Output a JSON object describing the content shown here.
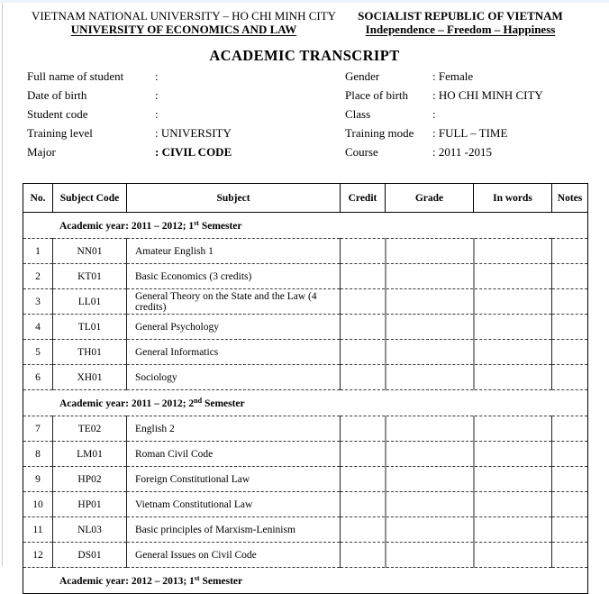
{
  "header": {
    "university_line1": "VIETNAM NATIONAL UNIVERSITY – HO CHI MINH CITY",
    "university_line2": "UNIVERSITY OF ECONOMICS AND LAW",
    "republic_line1": "SOCIALIST REPUBLIC OF VIETNAM",
    "republic_line2": "Independence – Freedom – Happiness"
  },
  "title": "ACADEMIC TRANSCRIPT",
  "student_info": {
    "left": [
      {
        "label": "Full name of student",
        "value": ":"
      },
      {
        "label": "Date of birth",
        "value": ":"
      },
      {
        "label": "Student code",
        "value": ":"
      },
      {
        "label": "Training level",
        "value": ": UNIVERSITY"
      },
      {
        "label": "Major",
        "value": ": CIVIL CODE"
      }
    ],
    "right": [
      {
        "label": "Gender",
        "value": ": Female"
      },
      {
        "label": "Place of birth",
        "value": ": HO CHI MINH CITY"
      },
      {
        "label": "Class",
        "value": ":"
      },
      {
        "label": "Training mode",
        "value": ": FULL – TIME"
      },
      {
        "label": "Course",
        "value": ": 2011 -2015"
      }
    ]
  },
  "table": {
    "columns": [
      "No.",
      "Subject Code",
      "Subject",
      "Credit",
      "Grade",
      "In words",
      "Notes"
    ],
    "sections": [
      {
        "label_prefix": "Academic year: 2011 – 2012; 1",
        "label_sup": "st",
        "label_suffix": " Semester",
        "rows": [
          {
            "no": "1",
            "code": "NN01",
            "subject": "Amateur English 1",
            "credit": "",
            "grade": "",
            "in_words": "",
            "notes": ""
          },
          {
            "no": "2",
            "code": "KT01",
            "subject": "Basic Economics (3 credits)",
            "credit": "",
            "grade": "",
            "in_words": "",
            "notes": ""
          },
          {
            "no": "3",
            "code": "LL01",
            "subject": "General Theory on the State and the Law (4 credits)",
            "credit": "",
            "grade": "",
            "in_words": "",
            "notes": ""
          },
          {
            "no": "4",
            "code": "TL01",
            "subject": "General Psychology",
            "credit": "",
            "grade": "",
            "in_words": "",
            "notes": ""
          },
          {
            "no": "5",
            "code": "TH01",
            "subject": "General Informatics",
            "credit": "",
            "grade": "",
            "in_words": "",
            "notes": ""
          },
          {
            "no": "6",
            "code": "XH01",
            "subject": "Sociology",
            "credit": "",
            "grade": "",
            "in_words": "",
            "notes": ""
          }
        ]
      },
      {
        "label_prefix": "Academic year: 2011 – 2012; 2",
        "label_sup": "nd",
        "label_suffix": " Semester",
        "rows": [
          {
            "no": "7",
            "code": "TE02",
            "subject": "English 2",
            "credit": "",
            "grade": "",
            "in_words": "",
            "notes": ""
          },
          {
            "no": "8",
            "code": "LM01",
            "subject": "Roman Civil Code",
            "credit": "",
            "grade": "",
            "in_words": "",
            "notes": ""
          },
          {
            "no": "9",
            "code": "HP02",
            "subject": "Foreign Constitutional Law",
            "credit": "",
            "grade": "",
            "in_words": "",
            "notes": ""
          },
          {
            "no": "10",
            "code": "HP01",
            "subject": "Vietnam Constitutional Law",
            "credit": "",
            "grade": "",
            "in_words": "",
            "notes": ""
          },
          {
            "no": "11",
            "code": "NL03",
            "subject": "Basic principles of Marxism-Leninism",
            "credit": "",
            "grade": "",
            "in_words": "",
            "notes": ""
          },
          {
            "no": "12",
            "code": "DS01",
            "subject": "General Issues on Civil Code",
            "credit": "",
            "grade": "",
            "in_words": "",
            "notes": ""
          }
        ]
      },
      {
        "label_prefix": "Academic year: 2012 – 2013; 1",
        "label_sup": "st",
        "label_suffix": " Semester",
        "rows": []
      }
    ]
  }
}
